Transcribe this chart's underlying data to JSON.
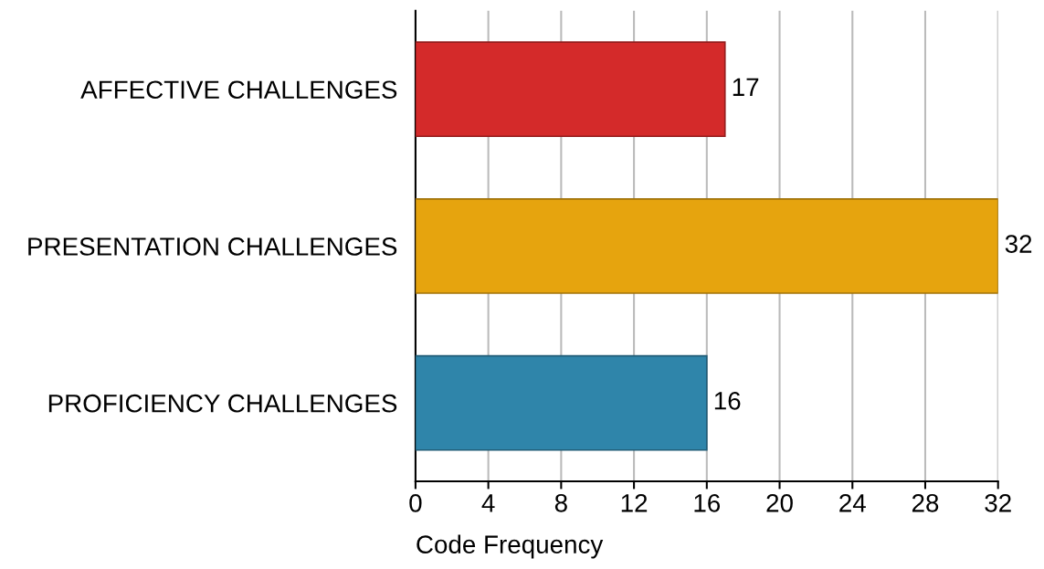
{
  "chart_data": {
    "type": "bar",
    "orientation": "horizontal",
    "xlabel": "Code Frequency",
    "categories": [
      "AFFECTIVE CHALLENGES",
      "PRESENTATION CHALLENGES",
      "PROFICIENCY CHALLENGES"
    ],
    "values": [
      17,
      32,
      16
    ],
    "colors": [
      "#d42a2a",
      "#e6a40e",
      "#2f85aa"
    ],
    "xlim": [
      0,
      32
    ],
    "xticks": [
      0,
      4,
      8,
      12,
      16,
      20,
      24,
      28,
      32
    ],
    "grid": "x",
    "data_labels": true
  }
}
